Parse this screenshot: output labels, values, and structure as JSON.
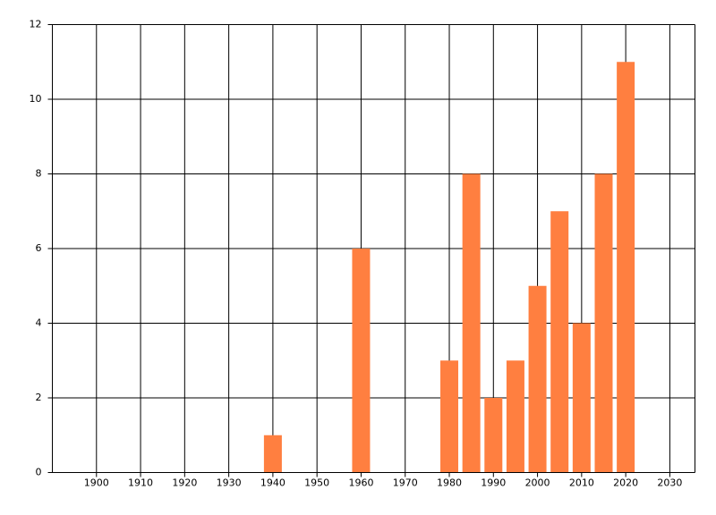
{
  "chart_data": {
    "type": "bar",
    "x": [
      1940,
      1960,
      1980,
      1985,
      1990,
      1995,
      2000,
      2005,
      2010,
      2015,
      2020
    ],
    "values": [
      1,
      6,
      3,
      8,
      2,
      3,
      5,
      7,
      4,
      8,
      11
    ],
    "color": "#ff7f40",
    "xlim": [
      1890,
      2035.7
    ],
    "xticks": [
      1900,
      1910,
      1920,
      1930,
      1940,
      1950,
      1960,
      1970,
      1980,
      1990,
      2000,
      2010,
      2020,
      2030
    ],
    "ylim": [
      0,
      12
    ],
    "yticks": [
      0,
      2,
      4,
      6,
      8,
      10,
      12
    ],
    "grid": true
  }
}
